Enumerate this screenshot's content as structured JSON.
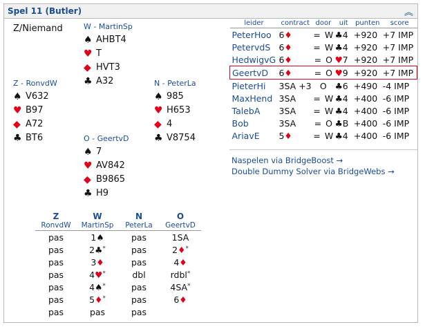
{
  "header": {
    "title": "Spel 11 (Butler)",
    "collapse_icon": "chevron-double-up"
  },
  "deal": {
    "dealer_vuln": "Z/Niemand",
    "north": {
      "name": "N - PeterLa",
      "spades": "985",
      "hearts": "H653",
      "diamonds": "4",
      "clubs": "V8754"
    },
    "south": {
      "name": "Z - RonvdW",
      "spades": "V632",
      "hearts": "B97",
      "diamonds": "A72",
      "clubs": "BT6"
    },
    "west": {
      "name": "W - MartinSp",
      "spades": "AHBT4",
      "hearts": "T",
      "diamonds": "HVT3",
      "clubs": "A32"
    },
    "east": {
      "name": "O - GeertvD",
      "spades": "7",
      "hearts": "AV842",
      "diamonds": "B9865",
      "clubs": "H9"
    }
  },
  "results": {
    "headers": [
      "leider",
      "contract",
      "door",
      "uit",
      "punten",
      "score"
    ],
    "rows": [
      {
        "player": "PeterHoo",
        "level": "6",
        "suit": "♦",
        "result": "=",
        "door": "W",
        "lead_suit": "♣",
        "lead": "4",
        "points": "+920",
        "score": "+7 IMP",
        "highlight": false
      },
      {
        "player": "PetervdS",
        "level": "6",
        "suit": "♦",
        "result": "=",
        "door": "W",
        "lead_suit": "♣",
        "lead": "4",
        "points": "+920",
        "score": "+7 IMP",
        "highlight": false
      },
      {
        "player": "HedwigvG",
        "level": "6",
        "suit": "♦",
        "result": "=",
        "door": "O",
        "lead_suit": "♥",
        "lead": "7",
        "points": "+920",
        "score": "+7 IMP",
        "highlight": false
      },
      {
        "player": "GeertvD",
        "level": "6",
        "suit": "♦",
        "result": "=",
        "door": "O",
        "lead_suit": "♥",
        "lead": "9",
        "points": "+920",
        "score": "+7 IMP",
        "highlight": true
      },
      {
        "player": "PieterHi",
        "level": "3SA",
        "suit": "",
        "result": "+3",
        "door": "O",
        "lead_suit": "♣",
        "lead": "6",
        "points": "+490",
        "score": "-4 IMP",
        "highlight": false
      },
      {
        "player": "MaxHend",
        "level": "3SA",
        "suit": "",
        "result": "=",
        "door": "W",
        "lead_suit": "♣",
        "lead": "4",
        "points": "+400",
        "score": "-6 IMP",
        "highlight": false
      },
      {
        "player": "TalebA",
        "level": "3SA",
        "suit": "",
        "result": "=",
        "door": "W",
        "lead_suit": "♣",
        "lead": "4",
        "points": "+400",
        "score": "-6 IMP",
        "highlight": false
      },
      {
        "player": "Bob",
        "level": "3SA",
        "suit": "",
        "result": "=",
        "door": "O",
        "lead_suit": "♣",
        "lead": "B",
        "points": "+400",
        "score": "-6 IMP",
        "highlight": false
      },
      {
        "player": "AriavE",
        "level": "5",
        "suit": "♦",
        "result": "=",
        "door": "W",
        "lead_suit": "♣",
        "lead": "4",
        "points": "+400",
        "score": "-6 IMP",
        "highlight": false
      }
    ]
  },
  "links": {
    "bridgeboost": "Naspelen via BridgeBoost →",
    "dds": "Double Dummy Solver via BridgeWebs →"
  },
  "bidding": {
    "seats": [
      "Z",
      "W",
      "N",
      "O"
    ],
    "players": [
      "RonvdW",
      "MartinSp",
      "PeterLa",
      "GeertvD"
    ],
    "rows": [
      [
        {
          "t": "pas"
        },
        {
          "t": "1",
          "s": "♠"
        },
        {
          "t": "pas"
        },
        {
          "t": "1SA"
        }
      ],
      [
        {
          "t": "pas"
        },
        {
          "t": "2",
          "s": "♣",
          "a": "*"
        },
        {
          "t": "pas"
        },
        {
          "t": "2",
          "s": "♦",
          "a": "*"
        }
      ],
      [
        {
          "t": "pas"
        },
        {
          "t": "3",
          "s": "♦"
        },
        {
          "t": "pas"
        },
        {
          "t": "4",
          "s": "♦"
        }
      ],
      [
        {
          "t": "pas"
        },
        {
          "t": "4",
          "s": "♥",
          "a": "*"
        },
        {
          "t": "dbl"
        },
        {
          "t": "rdbl",
          "a": "*"
        }
      ],
      [
        {
          "t": "pas"
        },
        {
          "t": "4",
          "s": "♠",
          "a": "*"
        },
        {
          "t": "pas"
        },
        {
          "t": "4SA",
          "a": "*"
        }
      ],
      [
        {
          "t": "pas"
        },
        {
          "t": "5",
          "s": "♦",
          "a": "*"
        },
        {
          "t": "pas"
        },
        {
          "t": "6",
          "s": "♦"
        }
      ],
      [
        {
          "t": "pas"
        },
        {
          "t": "pas"
        },
        {
          "t": "pas"
        },
        {
          "t": ""
        }
      ]
    ]
  }
}
